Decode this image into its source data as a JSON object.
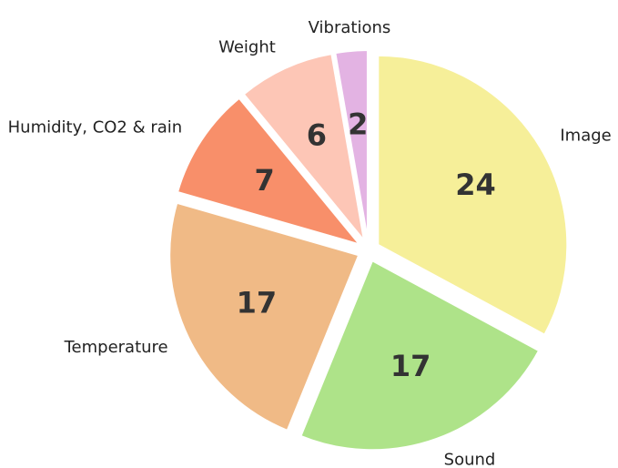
{
  "chart_data": {
    "type": "pie",
    "categories": [
      "Image",
      "Sound",
      "Temperature",
      "Humidity, CO2 & rain",
      "Weight",
      "Vibrations"
    ],
    "values": [
      24,
      17,
      17,
      7,
      6,
      2
    ],
    "colors": [
      "#f6ef99",
      "#aee389",
      "#f0ba86",
      "#f88f6a",
      "#fdc6b6",
      "#e3b3e3"
    ]
  }
}
